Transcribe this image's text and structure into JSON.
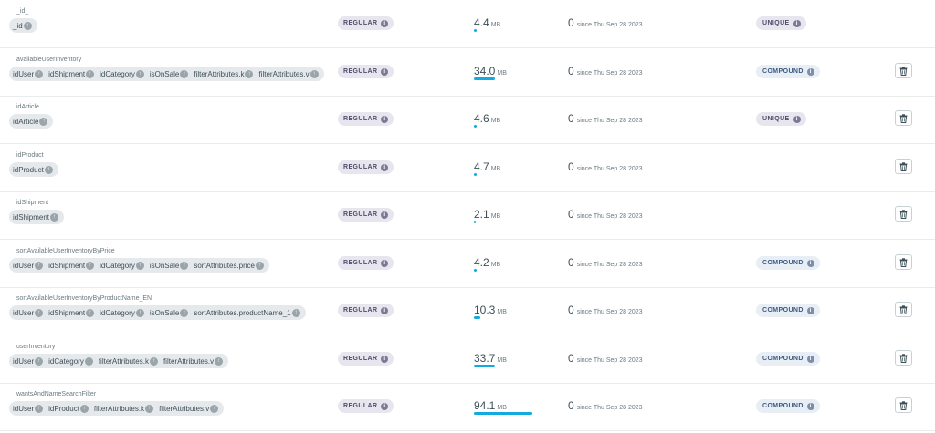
{
  "indexes": [
    {
      "name": "_id_",
      "fields": [
        "_id"
      ],
      "type": "REGULAR",
      "size_value": "4.4",
      "size_unit": "MB",
      "size_fraction": 0.05,
      "usage_count": "0",
      "usage_since": "since Thu Sep 28 2023",
      "property": "UNIQUE",
      "deletable": false
    },
    {
      "name": "availableUserInventory",
      "fields": [
        "idUser",
        "idShipment",
        "idCategory",
        "isOnSale",
        "filterAttributes.k",
        "filterAttributes.v"
      ],
      "type": "REGULAR",
      "size_value": "34.0",
      "size_unit": "MB",
      "size_fraction": 0.36,
      "usage_count": "0",
      "usage_since": "since Thu Sep 28 2023",
      "property": "COMPOUND",
      "deletable": true
    },
    {
      "name": "idArticle",
      "fields": [
        "idArticle"
      ],
      "type": "REGULAR",
      "size_value": "4.6",
      "size_unit": "MB",
      "size_fraction": 0.05,
      "usage_count": "0",
      "usage_since": "since Thu Sep 28 2023",
      "property": "UNIQUE",
      "deletable": true
    },
    {
      "name": "idProduct",
      "fields": [
        "idProduct"
      ],
      "type": "REGULAR",
      "size_value": "4.7",
      "size_unit": "MB",
      "size_fraction": 0.05,
      "usage_count": "0",
      "usage_since": "since Thu Sep 28 2023",
      "property": "",
      "deletable": true
    },
    {
      "name": "idShipment",
      "fields": [
        "idShipment"
      ],
      "type": "REGULAR",
      "size_value": "2.1",
      "size_unit": "MB",
      "size_fraction": 0.02,
      "usage_count": "0",
      "usage_since": "since Thu Sep 28 2023",
      "property": "",
      "deletable": true
    },
    {
      "name": "sortAvailableUserInventoryByPrice",
      "fields": [
        "idUser",
        "idShipment",
        "idCategory",
        "isOnSale",
        "sortAttributes.price"
      ],
      "type": "REGULAR",
      "size_value": "4.2",
      "size_unit": "MB",
      "size_fraction": 0.045,
      "usage_count": "0",
      "usage_since": "since Thu Sep 28 2023",
      "property": "COMPOUND",
      "deletable": true
    },
    {
      "name": "sortAvailableUserInventoryByProductName_EN",
      "fields": [
        "idUser",
        "idShipment",
        "idCategory",
        "isOnSale",
        "sortAttributes.productName_1"
      ],
      "type": "REGULAR",
      "size_value": "10.3",
      "size_unit": "MB",
      "size_fraction": 0.11,
      "usage_count": "0",
      "usage_since": "since Thu Sep 28 2023",
      "property": "COMPOUND",
      "deletable": true
    },
    {
      "name": "userInventory",
      "fields": [
        "idUser",
        "idCategory",
        "filterAttributes.k",
        "filterAttributes.v"
      ],
      "type": "REGULAR",
      "size_value": "33.7",
      "size_unit": "MB",
      "size_fraction": 0.36,
      "usage_count": "0",
      "usage_since": "since Thu Sep 28 2023",
      "property": "COMPOUND",
      "deletable": true
    },
    {
      "name": "wantsAndNameSearchFilter",
      "fields": [
        "idUser",
        "idProduct",
        "filterAttributes.k",
        "filterAttributes.v"
      ],
      "type": "REGULAR",
      "size_value": "94.1",
      "size_unit": "MB",
      "size_fraction": 1.0,
      "usage_count": "0",
      "usage_since": "since Thu Sep 28 2023",
      "property": "COMPOUND",
      "deletable": true
    }
  ],
  "icons": {
    "info": "info-icon",
    "sort_arrow": "arrow-up-icon",
    "delete": "trash-icon"
  },
  "colors": {
    "size_bar": "#13aae0",
    "type_badge_bg": "#e7e6ef",
    "compound_badge_bg": "#e8eef5"
  }
}
